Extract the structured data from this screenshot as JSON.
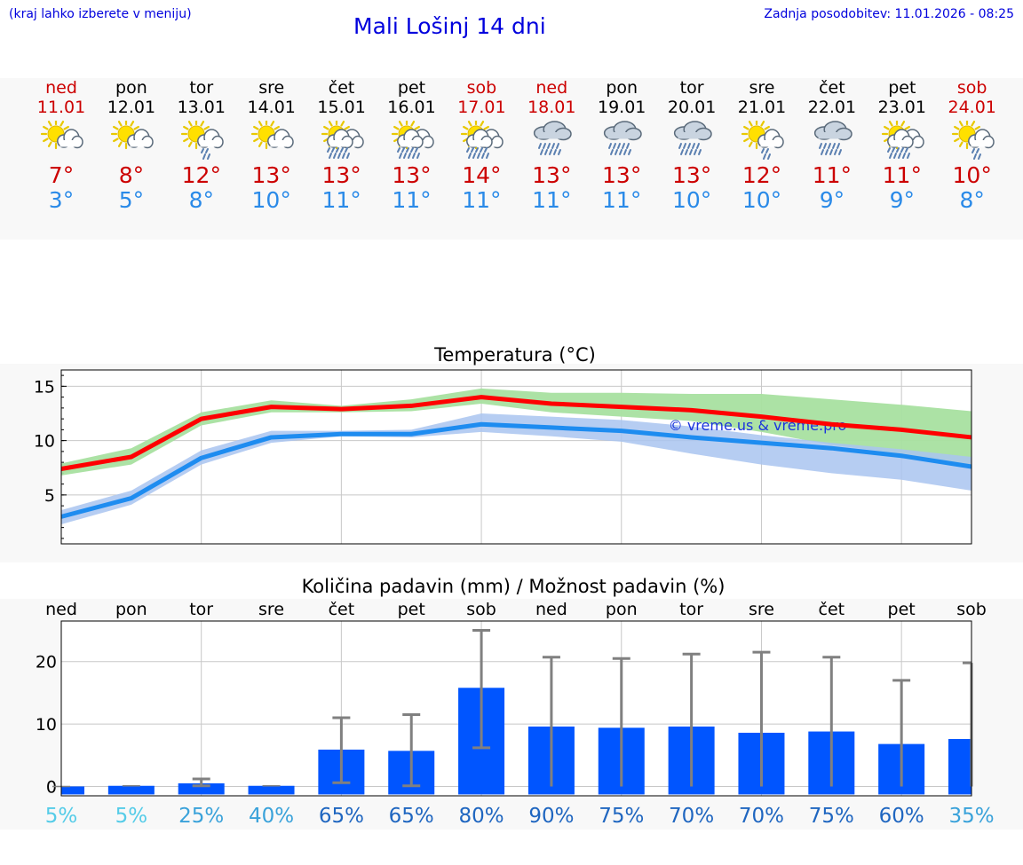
{
  "header": {
    "menu_hint": "(kraj lahko izberete v meniju)",
    "title": "Mali Lošinj 14 dni",
    "updated": "Zadnja posodobitev: 11.01.2026 - 08:25"
  },
  "colors": {
    "max_line": "#ff0000",
    "max_band": "#a8e0a0",
    "min_line": "#1e8cf0",
    "min_band": "#a9c4f0",
    "precip_bar": "#0055ff",
    "whisker": "#808080",
    "weekend": "#cc0000"
  },
  "days": [
    {
      "name": "ned",
      "date": "11.01",
      "weekend": true,
      "icon": "sun-cloud-icon",
      "tmax": "7°",
      "tmin": "3°"
    },
    {
      "name": "pon",
      "date": "12.01",
      "weekend": false,
      "icon": "sun-cloud-icon",
      "tmax": "8°",
      "tmin": "5°"
    },
    {
      "name": "tor",
      "date": "13.01",
      "weekend": false,
      "icon": "sun-light-rain-icon",
      "tmax": "12°",
      "tmin": "8°"
    },
    {
      "name": "sre",
      "date": "14.01",
      "weekend": false,
      "icon": "sun-cloud-icon",
      "tmax": "13°",
      "tmin": "10°"
    },
    {
      "name": "čet",
      "date": "15.01",
      "weekend": false,
      "icon": "sun-cloud-heavy-rain-icon",
      "tmax": "13°",
      "tmin": "11°"
    },
    {
      "name": "pet",
      "date": "16.01",
      "weekend": false,
      "icon": "sun-cloud-heavy-rain-icon",
      "tmax": "13°",
      "tmin": "11°"
    },
    {
      "name": "sob",
      "date": "17.01",
      "weekend": true,
      "icon": "sun-cloud-heavy-rain-icon",
      "tmax": "14°",
      "tmin": "11°"
    },
    {
      "name": "ned",
      "date": "18.01",
      "weekend": true,
      "icon": "cloud-rain-icon",
      "tmax": "13°",
      "tmin": "11°"
    },
    {
      "name": "pon",
      "date": "19.01",
      "weekend": false,
      "icon": "cloud-rain-icon",
      "tmax": "13°",
      "tmin": "11°"
    },
    {
      "name": "tor",
      "date": "20.01",
      "weekend": false,
      "icon": "cloud-rain-icon",
      "tmax": "13°",
      "tmin": "10°"
    },
    {
      "name": "sre",
      "date": "21.01",
      "weekend": false,
      "icon": "sun-light-rain-icon",
      "tmax": "12°",
      "tmin": "10°"
    },
    {
      "name": "čet",
      "date": "22.01",
      "weekend": false,
      "icon": "cloud-rain-icon",
      "tmax": "11°",
      "tmin": "9°"
    },
    {
      "name": "pet",
      "date": "23.01",
      "weekend": false,
      "icon": "sun-cloud-heavy-rain-icon",
      "tmax": "11°",
      "tmin": "9°"
    },
    {
      "name": "sob",
      "date": "24.01",
      "weekend": true,
      "icon": "sun-light-rain-icon",
      "tmax": "10°",
      "tmin": "8°"
    }
  ],
  "chart_data": [
    {
      "type": "line",
      "title": "Temperatura (°C)",
      "xlabel": "",
      "ylabel": "",
      "x": [
        0,
        1,
        2,
        3,
        4,
        5,
        6,
        7,
        8,
        9,
        10,
        11,
        12,
        13
      ],
      "yticks": [
        5,
        10,
        15
      ],
      "ylim": [
        0.5,
        16.5
      ],
      "grid": true,
      "watermark": "© vreme.us & vreme.pro",
      "series": [
        {
          "name": "max",
          "values": [
            7.4,
            8.5,
            12.0,
            13.1,
            12.9,
            13.2,
            14.0,
            13.4,
            13.1,
            12.8,
            12.2,
            11.5,
            11.0,
            10.3
          ],
          "band_low": [
            6.8,
            7.8,
            11.4,
            12.6,
            12.6,
            12.7,
            13.4,
            12.6,
            12.2,
            11.8,
            10.8,
            9.6,
            8.8,
            7.8
          ],
          "band_high": [
            7.9,
            9.3,
            12.6,
            13.7,
            13.2,
            13.8,
            14.8,
            14.4,
            14.4,
            14.3,
            14.3,
            13.8,
            13.3,
            12.7
          ]
        },
        {
          "name": "min",
          "values": [
            3.0,
            4.7,
            8.4,
            10.3,
            10.6,
            10.6,
            11.5,
            11.2,
            10.9,
            10.3,
            9.8,
            9.3,
            8.6,
            7.6
          ],
          "band_low": [
            2.3,
            4.1,
            7.8,
            9.8,
            10.4,
            10.3,
            10.8,
            10.4,
            9.9,
            8.8,
            7.8,
            7.0,
            6.4,
            5.4
          ],
          "band_high": [
            3.6,
            5.4,
            9.1,
            10.9,
            10.9,
            11.0,
            12.5,
            12.2,
            11.9,
            11.3,
            10.5,
            9.8,
            9.2,
            8.5
          ]
        }
      ]
    },
    {
      "type": "bar",
      "title": "Količina padavin (mm) / Možnost padavin (%)",
      "xlabel": "",
      "ylabel": "",
      "categories": [
        "ned",
        "pon",
        "tor",
        "sre",
        "čet",
        "pet",
        "sob",
        "ned",
        "pon",
        "tor",
        "sre",
        "čet",
        "pet",
        "sob"
      ],
      "values": [
        0,
        0.1,
        0.5,
        0.1,
        5.9,
        5.7,
        15.8,
        9.6,
        9.4,
        9.6,
        8.6,
        8.8,
        6.8,
        7.6
      ],
      "error_low": [
        0,
        0.1,
        0.1,
        0.1,
        0.6,
        0.1,
        6.2,
        0,
        0,
        0,
        0,
        0,
        0,
        0
      ],
      "error_high": [
        0,
        0.1,
        1.2,
        0.1,
        11.0,
        11.5,
        25.0,
        20.7,
        20.5,
        21.2,
        21.5,
        20.7,
        17.0,
        19.8
      ],
      "probability_labels": [
        "5%",
        "5%",
        "25%",
        "40%",
        "65%",
        "65%",
        "80%",
        "90%",
        "75%",
        "70%",
        "70%",
        "75%",
        "60%",
        "35%"
      ],
      "probability_colors": [
        "#55cce8",
        "#55cce8",
        "#3aa2da",
        "#3aa2da",
        "#1f66c0",
        "#1f66c0",
        "#1f66c0",
        "#1f66c0",
        "#1f66c0",
        "#1f66c0",
        "#1f66c0",
        "#1f66c0",
        "#1f66c0",
        "#3aa2da"
      ],
      "yticks": [
        0,
        10,
        20
      ],
      "ylim": [
        -1.5,
        26.5
      ],
      "grid": true
    }
  ]
}
